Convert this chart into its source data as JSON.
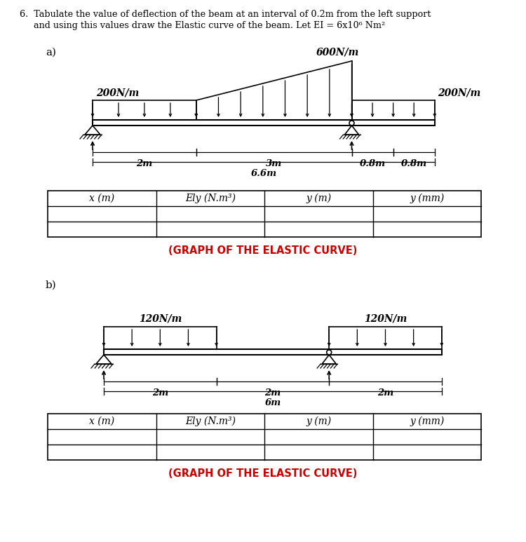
{
  "title_line1": "6.  Tabulate the value of deflection of the beam at an interval of 0.2m from the left support",
  "title_line2": "     and using this values draw the Elastic curve of the beam. Let EI = 6x10⁶ Nm²",
  "bg_color": "#ffffff",
  "text_color": "#000000",
  "red_color": "#cc0000",
  "part_a_label": "a)",
  "part_b_label": "b)",
  "a_load1_label": "200N/m",
  "a_load2_label": "600N/m",
  "a_load3_label": "200N/m",
  "a_dim1": "2m",
  "a_dim2": "3m",
  "a_dim3": "0.8m",
  "a_dim4": "0.8m",
  "a_total": "6.6m",
  "b_load1_label": "120N/m",
  "b_load2_label": "120N/m",
  "b_dim1": "2m",
  "b_dim2": "2m",
  "b_dim3": "2m",
  "b_total": "6m",
  "table_col_headers": [
    "x (m)",
    "Ely (N.m³)",
    "y (m)",
    "y (mm)"
  ],
  "graph_label": "(GRAPH OF THE ELASTIC CURVE)"
}
